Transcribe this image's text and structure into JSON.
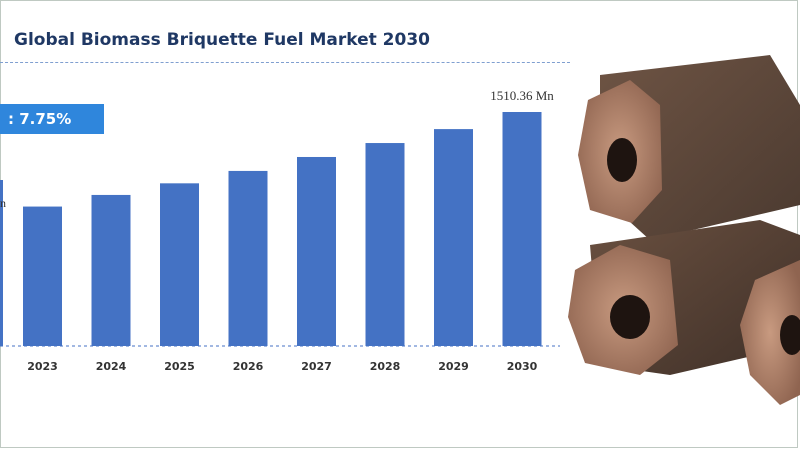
{
  "header": {
    "title": "Global Biomass Briquette Fuel Market 2030"
  },
  "cagr": {
    "text": ": 7.75%"
  },
  "left_label": {
    "text": "n"
  },
  "chart_data": {
    "type": "bar",
    "title": "Global Biomass Briquette Fuel Market 2030",
    "categories": [
      "2023",
      "2024",
      "2025",
      "2026",
      "2027",
      "2028",
      "2029",
      "2030"
    ],
    "values": [
      900,
      975,
      1050,
      1130,
      1220,
      1310,
      1400,
      1510.36
    ],
    "data_labels": [
      "",
      "",
      "",
      "",
      "",
      "",
      "",
      "1510.36 Mn"
    ],
    "bar_color": "#4472c4",
    "ylim": [
      0,
      1600
    ],
    "grid": false,
    "legend": "none"
  },
  "image": {
    "description_icon": "biomass-briquettes-photo"
  }
}
